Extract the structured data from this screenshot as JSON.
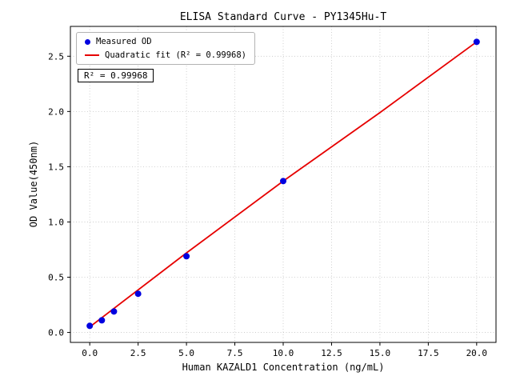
{
  "chart_data": {
    "type": "scatter",
    "title": "ELISA Standard Curve - PY1345Hu-T",
    "xlabel": "Human KAZALD1 Concentration (ng/mL)",
    "ylabel": "OD Value(450nm)",
    "xlim": [
      -1,
      21
    ],
    "ylim": [
      -0.09,
      2.77
    ],
    "x_ticks": {
      "values": [
        0,
        2.5,
        5,
        7.5,
        10,
        12.5,
        15,
        17.5,
        20
      ],
      "labels": [
        "0.0",
        "2.5",
        "5.0",
        "7.5",
        "10.0",
        "12.5",
        "15.0",
        "17.5",
        "20.0"
      ]
    },
    "y_ticks": {
      "values": [
        0,
        0.5,
        1.0,
        1.5,
        2.0,
        2.5
      ],
      "labels": [
        "0.0",
        "0.5",
        "1.0",
        "1.5",
        "2.0",
        "2.5"
      ]
    },
    "grid": true,
    "legend_position": "upper left",
    "annotation": "R² = 0.99968",
    "r_squared": 0.99968,
    "colors": {
      "grid": "#c4c4c4",
      "axis": "#000000",
      "background": "#ffffff"
    },
    "series": [
      {
        "name": "Measured OD",
        "kind": "scatter",
        "color": "#0000e0",
        "x": [
          0,
          0.625,
          1.25,
          2.5,
          5,
          10,
          20
        ],
        "y": [
          0.06,
          0.11,
          0.19,
          0.35,
          0.69,
          1.37,
          2.63
        ]
      },
      {
        "name": "Quadratic fit (R² = 0.99968)",
        "kind": "line",
        "color": "#e60000",
        "x": [
          0,
          5,
          10,
          15,
          20
        ],
        "y": [
          0.05,
          0.72,
          1.37,
          1.99,
          2.63
        ]
      }
    ]
  }
}
